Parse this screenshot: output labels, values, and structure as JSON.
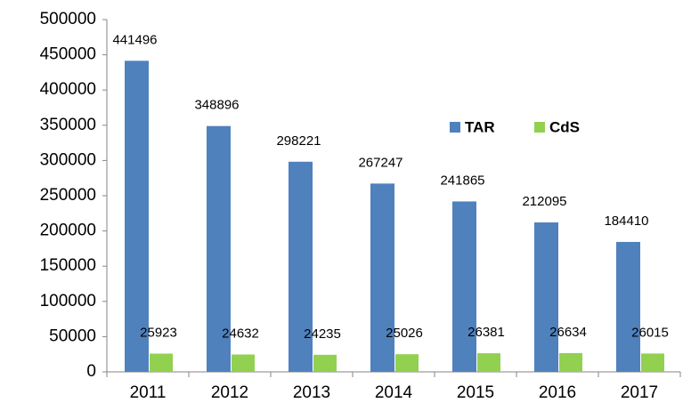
{
  "chart_data": {
    "type": "bar",
    "categories": [
      "2011",
      "2012",
      "2013",
      "2014",
      "2015",
      "2016",
      "2017"
    ],
    "series": [
      {
        "name": "TAR",
        "color": "#4f81bd",
        "values": [
          441496,
          348896,
          298221,
          267247,
          241865,
          212095,
          184410
        ]
      },
      {
        "name": "CdS",
        "color": "#92d050",
        "values": [
          25923,
          24632,
          24235,
          25026,
          26381,
          26634,
          26015
        ]
      }
    ],
    "ylim": [
      0,
      500000
    ],
    "yticks": [
      0,
      50000,
      100000,
      150000,
      200000,
      250000,
      300000,
      350000,
      400000,
      450000,
      500000
    ],
    "grid": false
  }
}
